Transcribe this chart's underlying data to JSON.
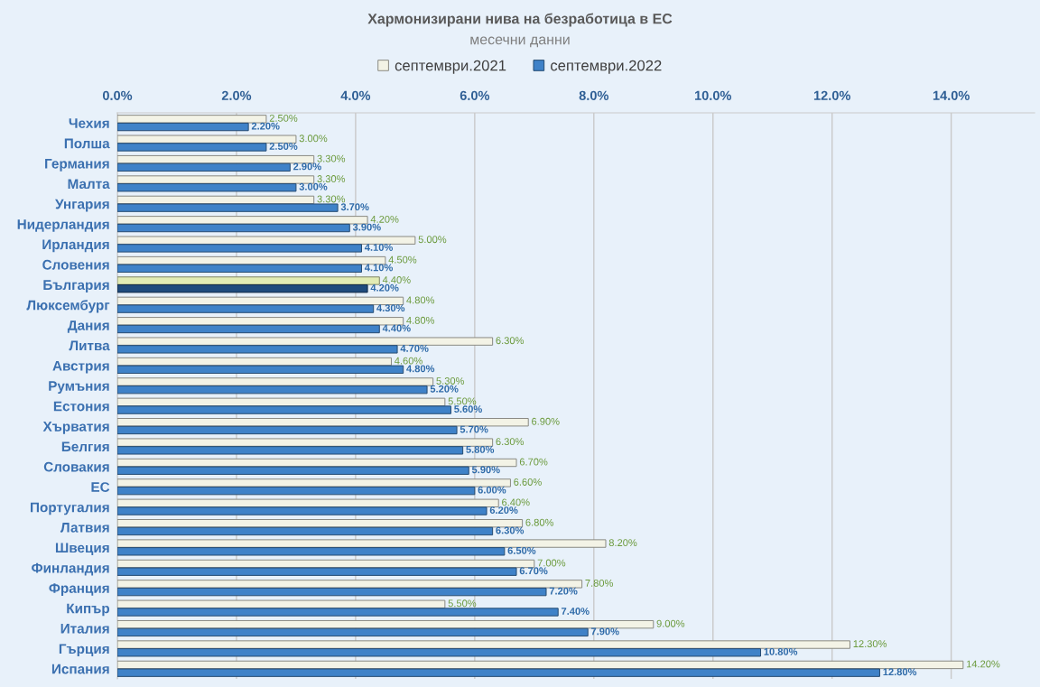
{
  "chart_data": {
    "type": "bar",
    "orientation": "horizontal",
    "title": "Хармонизирани нива на безработица в ЕС",
    "subtitle": "месечни данни",
    "categories": [
      "Чехия",
      "Полша",
      "Германия",
      "Малта",
      "Унгария",
      "Нидерландия",
      "Ирландия",
      "Словения",
      "България",
      "Люксембург",
      "Дания",
      "Литва",
      "Австрия",
      "Румъния",
      "Естония",
      "Хърватия",
      "Белгия",
      "Словакия",
      "ЕС",
      "Португалия",
      "Латвия",
      "Швеция",
      "Финландия",
      "Франция",
      "Кипър",
      "Италия",
      "Гърция",
      "Испания"
    ],
    "series": [
      {
        "name": "септември.2021",
        "color": "#f3f3e6",
        "colors": [
          "#f3f3e6",
          "#f3f3e6",
          "#f3f3e6",
          "#f3f3e6",
          "#f3f3e6",
          "#f3f3e6",
          "#f3f3e6",
          "#f3f3e6",
          "#e2ecb4",
          "#f3f3e6",
          "#f3f3e6",
          "#f3f3e6",
          "#f3f3e6",
          "#f3f3e6",
          "#f3f3e6",
          "#f3f3e6",
          "#f3f3e6",
          "#f3f3e6",
          "#f3f3e6",
          "#f3f3e6",
          "#f3f3e6",
          "#f3f3e6",
          "#f3f3e6",
          "#f3f3e6",
          "#f3f3e6",
          "#f3f3e6",
          "#f3f3e6",
          "#f3f3e6"
        ],
        "values": [
          2.5,
          3.0,
          3.3,
          3.3,
          3.3,
          4.2,
          5.0,
          4.5,
          4.4,
          4.8,
          4.8,
          6.3,
          4.6,
          5.3,
          5.5,
          6.9,
          6.3,
          6.7,
          6.6,
          6.4,
          6.8,
          8.2,
          7.0,
          7.8,
          5.5,
          9.0,
          12.3,
          14.2
        ],
        "value_labels": [
          "2.50%",
          "3.00%",
          "3.30%",
          "3.30%",
          "3.30%",
          "4.20%",
          "5.00%",
          "4.50%",
          "4.40%",
          "4.80%",
          "4.80%",
          "6.30%",
          "4.60%",
          "5.30%",
          "5.50%",
          "6.90%",
          "6.30%",
          "6.70%",
          "6.60%",
          "6.40%",
          "6.80%",
          "8.20%",
          "7.00%",
          "7.80%",
          "5.50%",
          "9.00%",
          "12.30%",
          "14.20%"
        ]
      },
      {
        "name": "септември.2022",
        "color": "#3f82c8",
        "colors": [
          "#3f82c8",
          "#3f82c8",
          "#3f82c8",
          "#3f82c8",
          "#3f82c8",
          "#3f82c8",
          "#3f82c8",
          "#3f82c8",
          "#1f4b7d",
          "#3f82c8",
          "#3f82c8",
          "#3f82c8",
          "#3f82c8",
          "#3f82c8",
          "#3f82c8",
          "#3f82c8",
          "#3f82c8",
          "#3f82c8",
          "#3f82c8",
          "#3f82c8",
          "#3f82c8",
          "#3f82c8",
          "#3f82c8",
          "#3f82c8",
          "#3f82c8",
          "#3f82c8",
          "#3f82c8",
          "#3f82c8"
        ],
        "values": [
          2.2,
          2.5,
          2.9,
          3.0,
          3.7,
          3.9,
          4.1,
          4.1,
          4.2,
          4.3,
          4.4,
          4.7,
          4.8,
          5.2,
          5.6,
          5.7,
          5.8,
          5.9,
          6.0,
          6.2,
          6.3,
          6.5,
          6.7,
          7.2,
          7.4,
          7.9,
          10.8,
          12.8
        ],
        "value_labels": [
          "2.20%",
          "2.50%",
          "2.90%",
          "3.00%",
          "3.70%",
          "3.90%",
          "4.10%",
          "4.10%",
          "4.20%",
          "4.30%",
          "4.40%",
          "4.70%",
          "4.80%",
          "5.20%",
          "5.60%",
          "5.70%",
          "5.80%",
          "5.90%",
          "6.00%",
          "6.20%",
          "6.30%",
          "6.50%",
          "6.70%",
          "7.20%",
          "7.40%",
          "7.90%",
          "10.80%",
          "12.80%"
        ]
      }
    ],
    "xlim": [
      0,
      15.4
    ],
    "xticks": [
      {
        "value": 0,
        "label": "0.0%"
      },
      {
        "value": 2,
        "label": "2.0%"
      },
      {
        "value": 4,
        "label": "4.0%"
      },
      {
        "value": 6,
        "label": "6.0%"
      },
      {
        "value": 8,
        "label": "8.0%"
      },
      {
        "value": 10,
        "label": "10.0%"
      },
      {
        "value": 12,
        "label": "12.0%"
      },
      {
        "value": 14,
        "label": "14.0%"
      }
    ],
    "grid": "x",
    "legend": "top"
  }
}
